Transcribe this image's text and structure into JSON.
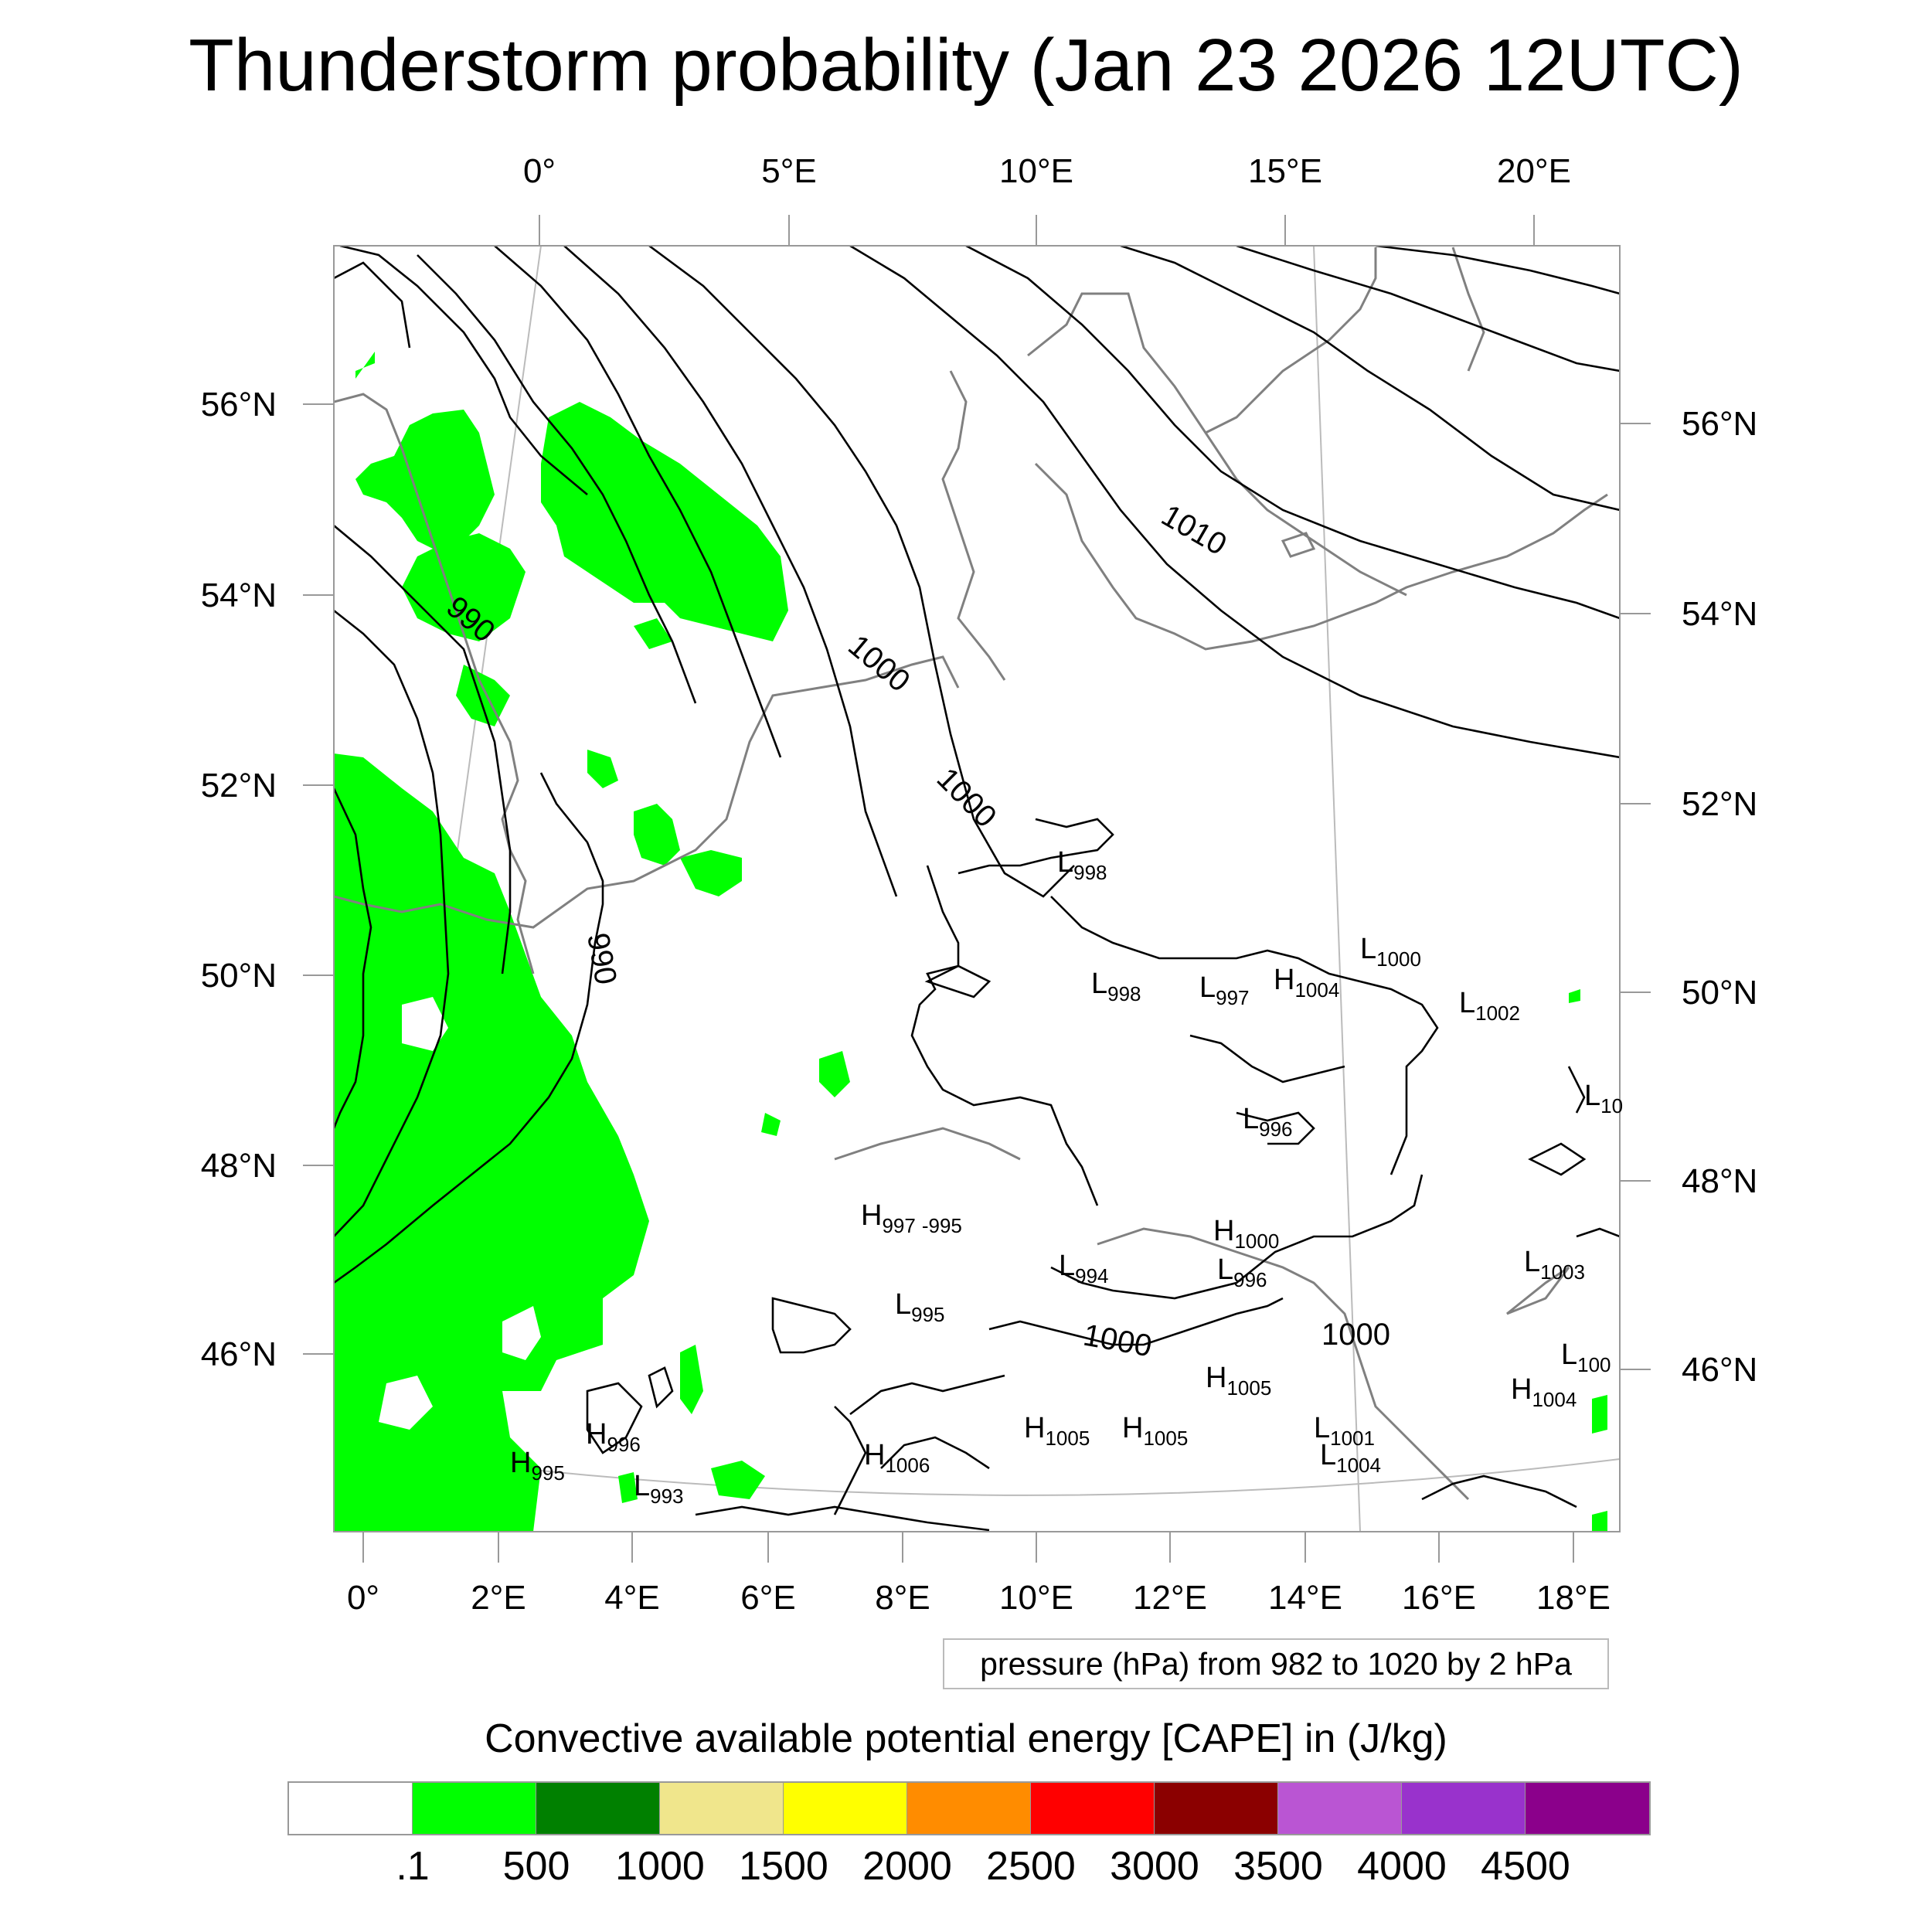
{
  "title": "Thunderstorm probability (Jan 23 2026 12UTC)",
  "map": {
    "top_lon_labels": [
      "0°",
      "5°E",
      "10°E",
      "15°E",
      "20°E"
    ],
    "bottom_lon_labels": [
      "0°",
      "2°E",
      "4°E",
      "6°E",
      "8°E",
      "10°E",
      "12°E",
      "14°E",
      "16°E",
      "18°E"
    ],
    "left_lat_labels": [
      "56°N",
      "54°N",
      "52°N",
      "50°N",
      "48°N",
      "46°N"
    ],
    "right_lat_labels": [
      "56°N",
      "54°N",
      "52°N",
      "50°N",
      "48°N",
      "46°N"
    ],
    "isobar_labels": [
      "990",
      "990",
      "1000",
      "1000",
      "1010",
      "1000",
      "1000"
    ],
    "pressure_centers": [
      {
        "type": "L",
        "value": "998"
      },
      {
        "type": "L",
        "value": "998"
      },
      {
        "type": "L",
        "value": "997"
      },
      {
        "type": "H",
        "value": "1004"
      },
      {
        "type": "L",
        "value": "1000"
      },
      {
        "type": "L",
        "value": "1002"
      },
      {
        "type": "L",
        "value": "996"
      },
      {
        "type": "L",
        "value": "10"
      },
      {
        "type": "H",
        "value": "997"
      },
      {
        "type": "H",
        "value": "1000"
      },
      {
        "type": "L",
        "value": "994"
      },
      {
        "type": "L",
        "value": "996"
      },
      {
        "type": "L",
        "value": "1003"
      },
      {
        "type": "L",
        "value": "995"
      },
      {
        "type": "L",
        "value": "100"
      },
      {
        "type": "H",
        "value": "1005"
      },
      {
        "type": "H",
        "value": "1004"
      },
      {
        "type": "H",
        "value": "996"
      },
      {
        "type": "H",
        "value": "1005"
      },
      {
        "type": "H",
        "value": "1005"
      },
      {
        "type": "L",
        "value": "1001"
      },
      {
        "type": "H",
        "value": "995"
      },
      {
        "type": "L",
        "value": "993"
      },
      {
        "type": "H",
        "value": "1006"
      },
      {
        "type": "L",
        "value": "1004"
      }
    ],
    "stray_label": "-995",
    "colors": {
      "cape_fill": "#00ff00",
      "isobar": "#000000",
      "coastline": "#808080"
    }
  },
  "pressure_note": "pressure (hPa) from 982 to 1020 by 2 hPa",
  "colorbar": {
    "title": "Convective available potential energy [CAPE] in (J/kg)",
    "colors": [
      "#ffffff",
      "#00ff00",
      "#008000",
      "#f0e68c",
      "#ffff00",
      "#ff8c00",
      "#ff0000",
      "#8b0000",
      "#ba55d3",
      "#9932cc",
      "#8b008b"
    ],
    "labels": [
      ".1",
      "500",
      "1000",
      "1500",
      "2000",
      "2500",
      "3000",
      "3500",
      "4000",
      "4500"
    ]
  }
}
